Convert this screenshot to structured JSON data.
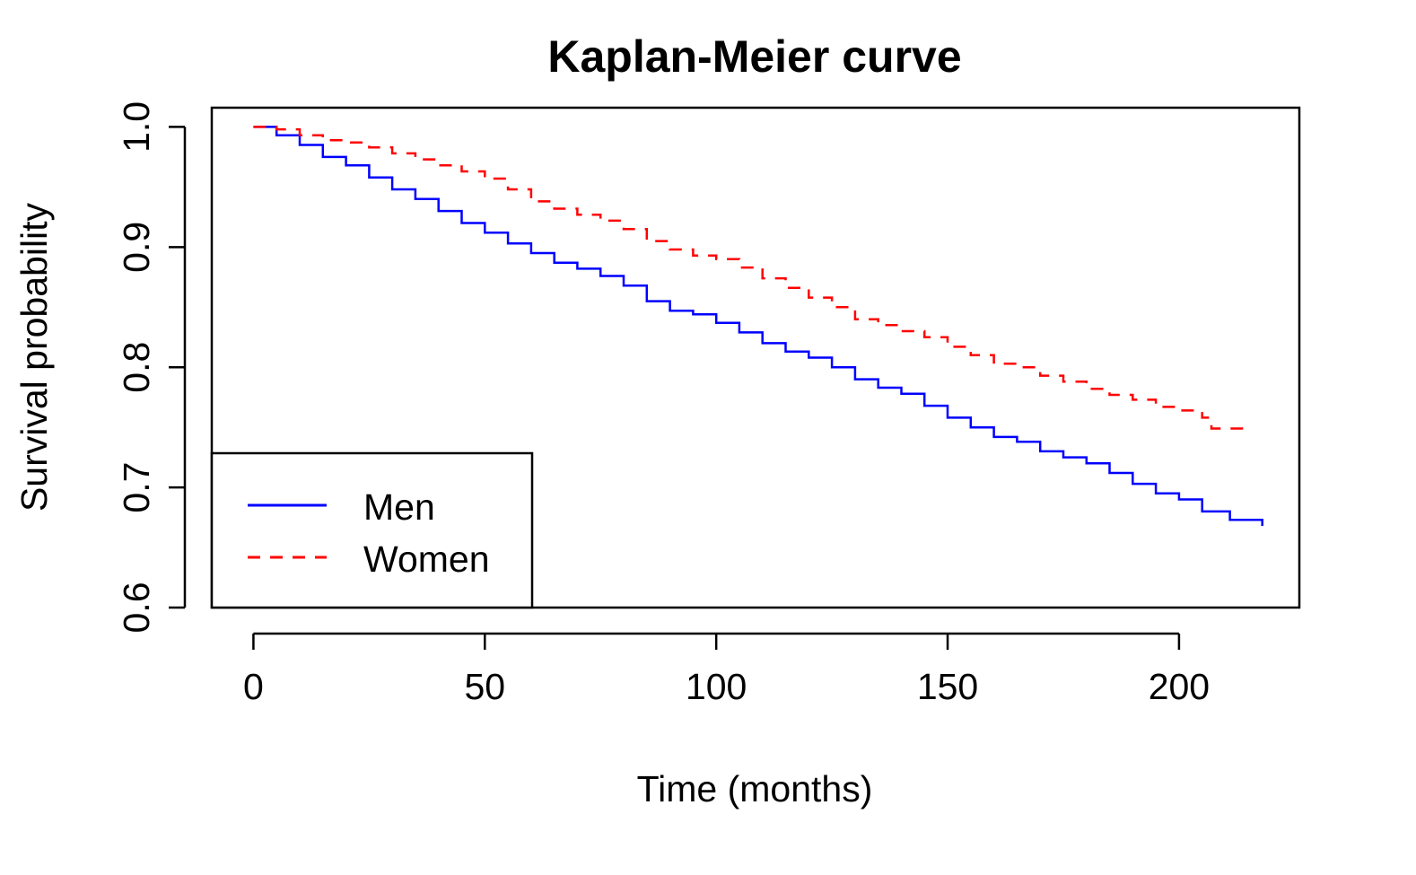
{
  "chart_data": {
    "type": "line",
    "title": "Kaplan-Meier curve",
    "xlabel": "Time (months)",
    "ylabel": "Survival probability",
    "xlim": [
      -9,
      226
    ],
    "ylim": [
      0.6,
      1.016
    ],
    "xticks": [
      0,
      50,
      100,
      150,
      200
    ],
    "yticks": [
      0.6,
      0.7,
      0.8,
      0.9,
      1.0
    ],
    "xtick_labels": [
      "0",
      "50",
      "100",
      "150",
      "200"
    ],
    "ytick_labels": [
      "0.6",
      "0.7",
      "0.8",
      "0.9",
      "1.0"
    ],
    "grid": false,
    "step": true,
    "legend": {
      "position": "bottom-left",
      "entries": [
        {
          "label": "Men",
          "color": "#0000ff",
          "dash": "solid"
        },
        {
          "label": "Women",
          "color": "#ff0000",
          "dash": "dashed"
        }
      ]
    },
    "series": [
      {
        "name": "Men",
        "color": "#0000ff",
        "dash": "solid",
        "x": [
          0,
          5,
          10,
          15,
          20,
          25,
          30,
          35,
          40,
          45,
          50,
          55,
          60,
          65,
          70,
          75,
          80,
          85,
          90,
          95,
          100,
          105,
          110,
          115,
          120,
          125,
          130,
          135,
          140,
          145,
          150,
          155,
          160,
          165,
          170,
          175,
          180,
          185,
          190,
          195,
          200,
          205,
          211,
          218
        ],
        "y": [
          1.0,
          0.993,
          0.985,
          0.975,
          0.968,
          0.958,
          0.948,
          0.94,
          0.93,
          0.92,
          0.912,
          0.903,
          0.895,
          0.887,
          0.882,
          0.876,
          0.868,
          0.855,
          0.847,
          0.844,
          0.837,
          0.829,
          0.82,
          0.813,
          0.808,
          0.8,
          0.79,
          0.783,
          0.778,
          0.768,
          0.758,
          0.75,
          0.742,
          0.738,
          0.73,
          0.725,
          0.72,
          0.712,
          0.703,
          0.695,
          0.69,
          0.68,
          0.673,
          0.668
        ]
      },
      {
        "name": "Women",
        "color": "#ff0000",
        "dash": "dashed",
        "x": [
          0,
          5,
          10,
          15,
          20,
          25,
          30,
          35,
          40,
          45,
          50,
          55,
          60,
          65,
          70,
          75,
          80,
          85,
          90,
          95,
          100,
          105,
          110,
          115,
          120,
          125,
          130,
          135,
          140,
          145,
          150,
          155,
          160,
          165,
          170,
          175,
          180,
          185,
          190,
          195,
          200,
          205,
          207,
          215
        ],
        "y": [
          1.0,
          0.998,
          0.993,
          0.989,
          0.987,
          0.983,
          0.978,
          0.973,
          0.968,
          0.963,
          0.957,
          0.948,
          0.938,
          0.932,
          0.927,
          0.922,
          0.915,
          0.905,
          0.898,
          0.893,
          0.89,
          0.883,
          0.874,
          0.866,
          0.858,
          0.85,
          0.84,
          0.835,
          0.83,
          0.825,
          0.817,
          0.81,
          0.803,
          0.8,
          0.793,
          0.788,
          0.782,
          0.777,
          0.773,
          0.767,
          0.764,
          0.758,
          0.749,
          0.749
        ]
      }
    ]
  }
}
